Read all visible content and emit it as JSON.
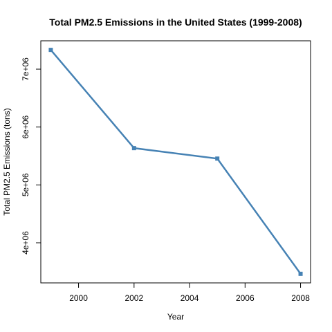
{
  "chart_data": {
    "type": "line",
    "title": "Total PM2.5 Emissions in the United States (1999-2008)",
    "xlabel": "Year",
    "ylabel": "Total PM2.5 Emissions (tons)",
    "x": [
      1999,
      2002,
      2005,
      2008
    ],
    "series": [
      {
        "values": [
          7332967,
          5635780,
          5454703,
          3464206
        ]
      }
    ],
    "xlim": [
      1998.64,
      2008.36
    ],
    "ylim": [
      3307000,
      7490000
    ],
    "xticks": [
      2000,
      2002,
      2004,
      2006,
      2008
    ],
    "xtick_labels": [
      "2000",
      "2002",
      "2004",
      "2006",
      "2008"
    ],
    "yticks": [
      4000000,
      5000000,
      6000000,
      7000000
    ],
    "ytick_labels": [
      "4e+06",
      "5e+06",
      "6e+06",
      "7e+06"
    ],
    "grid": false,
    "line_color": "#4682B4"
  }
}
